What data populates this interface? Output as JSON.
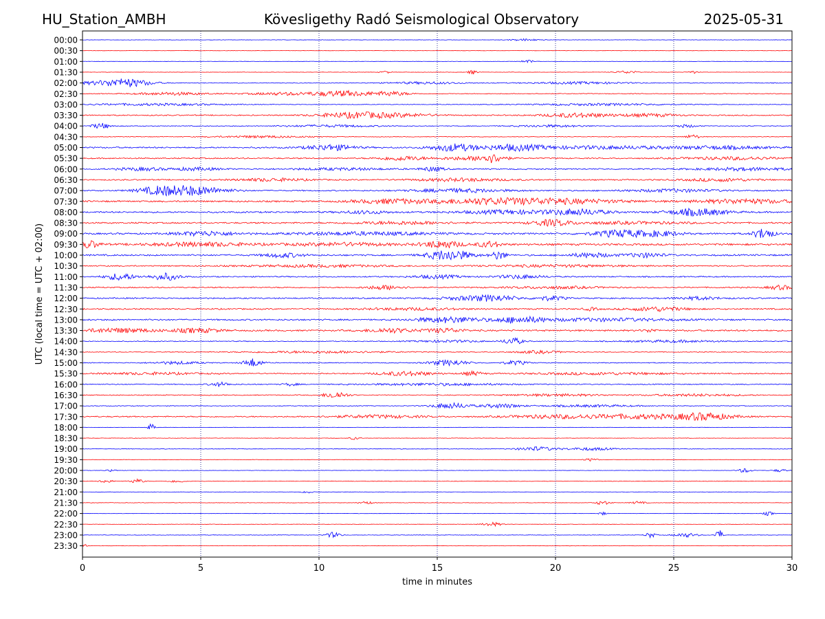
{
  "header": {
    "station": "HU_Station_AMBH",
    "observatory": "Kövesligethy Radó Seismological Observatory",
    "date": "2025-05-31"
  },
  "chart_data": {
    "type": "line",
    "title": "Kövesligethy Radó Seismological Observatory",
    "xlabel": "time in minutes",
    "ylabel": "UTC (local time = UTC + 02:00)",
    "xlim": [
      0,
      30
    ],
    "x_ticks": [
      0,
      5,
      10,
      15,
      20,
      25,
      30
    ],
    "grid": "vertical dotted at 5-minute ticks",
    "colors": {
      "even_row": "#0000ff",
      "odd_row": "#ff0000",
      "grid": "#000080"
    },
    "rows": [
      {
        "label": "00:00",
        "level": 0.3,
        "bursts": [
          [
            18.7,
            0.6,
            1.5
          ]
        ]
      },
      {
        "label": "00:30",
        "level": 0.25,
        "bursts": []
      },
      {
        "label": "01:00",
        "level": 0.25,
        "bursts": [
          [
            18.8,
            0.3,
            2
          ]
        ]
      },
      {
        "label": "01:30",
        "level": 0.3,
        "bursts": [
          [
            12.8,
            0.2,
            2
          ],
          [
            16.5,
            0.2,
            3
          ],
          [
            23,
            0.5,
            2
          ],
          [
            25.8,
            0.2,
            2
          ]
        ]
      },
      {
        "label": "02:00",
        "level": 0.6,
        "bursts": [
          [
            1.9,
            1.0,
            5
          ],
          [
            0.8,
            1.5,
            2
          ],
          [
            14.5,
            1.5,
            1.5
          ],
          [
            21,
            2,
            1.5
          ]
        ]
      },
      {
        "label": "02:30",
        "level": 0.6,
        "bursts": [
          [
            3.8,
            1.5,
            2
          ],
          [
            11,
            1.2,
            4
          ],
          [
            13,
            0.8,
            3
          ],
          [
            8.5,
            1.5,
            2
          ]
        ]
      },
      {
        "label": "03:00",
        "level": 0.5,
        "bursts": [
          [
            3,
            3,
            1.5
          ],
          [
            22,
            3,
            1.5
          ]
        ]
      },
      {
        "label": "03:30",
        "level": 0.9,
        "bursts": [
          [
            11.5,
            1.5,
            4
          ],
          [
            13.5,
            1.5,
            2
          ],
          [
            21,
            1.5,
            3
          ],
          [
            24,
            1.2,
            2
          ]
        ]
      },
      {
        "label": "04:00",
        "level": 0.6,
        "bursts": [
          [
            0.8,
            0.4,
            4
          ],
          [
            10.5,
            2,
            1.5
          ],
          [
            19.8,
            1.5,
            1.5
          ],
          [
            25.5,
            0.5,
            2
          ]
        ]
      },
      {
        "label": "04:30",
        "level": 0.5,
        "bursts": [
          [
            7.5,
            2,
            1.5
          ],
          [
            25.8,
            0.3,
            3
          ]
        ]
      },
      {
        "label": "05:00",
        "level": 1.2,
        "bursts": [
          [
            10.5,
            1,
            4
          ],
          [
            15.7,
            1,
            5
          ],
          [
            18.3,
            1.2,
            4
          ],
          [
            22,
            3,
            2
          ],
          [
            27,
            2,
            2
          ]
        ]
      },
      {
        "label": "05:30",
        "level": 1.0,
        "bursts": [
          [
            13.5,
            1,
            3
          ],
          [
            17.3,
            0.6,
            6
          ],
          [
            16,
            1,
            2
          ],
          [
            27.5,
            2,
            2
          ]
        ]
      },
      {
        "label": "06:00",
        "level": 1.0,
        "bursts": [
          [
            2.5,
            1,
            2
          ],
          [
            4.8,
            1,
            2
          ],
          [
            11,
            2,
            1.5
          ],
          [
            14.8,
            0.5,
            3
          ],
          [
            28,
            2,
            2
          ]
        ]
      },
      {
        "label": "06:30",
        "level": 1.0,
        "bursts": [
          [
            8,
            1.5,
            2
          ],
          [
            16,
            2,
            2
          ],
          [
            27,
            1.5,
            2
          ]
        ]
      },
      {
        "label": "07:00",
        "level": 1.0,
        "bursts": [
          [
            3.8,
            1.2,
            9
          ],
          [
            5.5,
            1,
            3
          ],
          [
            16,
            2,
            2.5
          ],
          [
            25,
            2,
            2
          ]
        ]
      },
      {
        "label": "07:30",
        "level": 1.3,
        "bursts": [
          [
            13,
            1.5,
            3
          ],
          [
            19.5,
            3,
            4
          ],
          [
            28,
            2,
            3
          ],
          [
            16.5,
            2,
            2.5
          ]
        ]
      },
      {
        "label": "08:00",
        "level": 1.3,
        "bursts": [
          [
            21,
            1.2,
            4
          ],
          [
            26,
            1.2,
            5
          ],
          [
            12,
            1,
            2
          ],
          [
            18,
            2,
            2.5
          ]
        ]
      },
      {
        "label": "08:30",
        "level": 1.2,
        "bursts": [
          [
            19.8,
            0.8,
            4
          ],
          [
            13.5,
            2,
            2
          ],
          [
            23,
            3,
            1.5
          ]
        ]
      },
      {
        "label": "09:00",
        "level": 1.4,
        "bursts": [
          [
            5.2,
            1.2,
            3
          ],
          [
            22.8,
            1.2,
            5
          ],
          [
            24.5,
            0.8,
            3
          ],
          [
            28.8,
            0.4,
            8
          ],
          [
            12,
            3,
            2
          ]
        ]
      },
      {
        "label": "09:30",
        "level": 1.6,
        "bursts": [
          [
            0.3,
            0.4,
            5
          ],
          [
            15.2,
            0.8,
            5
          ],
          [
            17.2,
            0.5,
            4
          ],
          [
            5,
            2,
            2.5
          ],
          [
            11,
            2,
            2
          ]
        ]
      },
      {
        "label": "10:00",
        "level": 1.3,
        "bursts": [
          [
            8.5,
            0.8,
            3
          ],
          [
            15.5,
            0.9,
            8
          ],
          [
            17.6,
            0.3,
            6
          ],
          [
            21.5,
            0.9,
            3
          ],
          [
            23.8,
            0.8,
            3
          ]
        ]
      },
      {
        "label": "10:30",
        "level": 1.0,
        "bursts": [
          [
            10,
            3,
            1.5
          ],
          [
            20,
            3,
            1.5
          ]
        ]
      },
      {
        "label": "11:00",
        "level": 1.0,
        "bursts": [
          [
            1.6,
            0.6,
            5
          ],
          [
            3.5,
            0.6,
            5
          ],
          [
            15,
            1,
            2.5
          ],
          [
            18.5,
            1,
            2.5
          ]
        ]
      },
      {
        "label": "11:30",
        "level": 1.0,
        "bursts": [
          [
            12.8,
            0.8,
            3
          ],
          [
            29.5,
            0.5,
            3
          ],
          [
            20,
            2,
            1.5
          ]
        ]
      },
      {
        "label": "12:00",
        "level": 1.1,
        "bursts": [
          [
            17.4,
            1,
            4
          ],
          [
            19.8,
            0.6,
            3
          ],
          [
            26,
            1,
            2
          ],
          [
            16,
            1,
            2
          ]
        ]
      },
      {
        "label": "12:30",
        "level": 1.1,
        "bursts": [
          [
            14,
            2,
            1.5
          ],
          [
            24.3,
            1.2,
            3
          ],
          [
            21.5,
            0.3,
            2
          ]
        ]
      },
      {
        "label": "13:00",
        "level": 1.2,
        "bursts": [
          [
            15.5,
            1.4,
            4
          ],
          [
            18.5,
            1,
            4
          ],
          [
            22,
            3,
            2
          ]
        ]
      },
      {
        "label": "13:30",
        "level": 1.3,
        "bursts": [
          [
            1.5,
            1.5,
            3
          ],
          [
            4.8,
            1,
            3
          ],
          [
            13,
            1,
            3
          ],
          [
            15.3,
            0.8,
            3
          ],
          [
            24,
            0.3,
            2
          ]
        ]
      },
      {
        "label": "14:00",
        "level": 0.7,
        "bursts": [
          [
            18.2,
            0.4,
            5
          ],
          [
            15.5,
            1.5,
            1.5
          ],
          [
            25,
            2,
            1.5
          ]
        ]
      },
      {
        "label": "14:30",
        "level": 0.6,
        "bursts": [
          [
            19.3,
            1,
            2
          ],
          [
            10,
            3,
            1.5
          ]
        ]
      },
      {
        "label": "15:00",
        "level": 0.7,
        "bursts": [
          [
            7.2,
            0.4,
            6
          ],
          [
            15.5,
            0.8,
            4
          ],
          [
            18.3,
            0.5,
            3
          ],
          [
            4,
            1,
            2
          ]
        ]
      },
      {
        "label": "15:30",
        "level": 0.9,
        "bursts": [
          [
            13.7,
            1.2,
            3
          ],
          [
            16.5,
            0.4,
            3
          ],
          [
            3,
            2,
            1.5
          ],
          [
            22,
            3,
            1.5
          ]
        ]
      },
      {
        "label": "16:00",
        "level": 0.8,
        "bursts": [
          [
            5.8,
            0.4,
            3
          ],
          [
            8.8,
            0.3,
            2
          ],
          [
            15,
            3,
            1.5
          ]
        ]
      },
      {
        "label": "16:30",
        "level": 0.7,
        "bursts": [
          [
            10.7,
            0.5,
            5
          ],
          [
            20,
            2,
            1.5
          ],
          [
            26,
            2,
            1.5
          ]
        ]
      },
      {
        "label": "17:00",
        "level": 0.6,
        "bursts": [
          [
            15.6,
            0.8,
            4
          ],
          [
            17.7,
            0.8,
            3
          ],
          [
            21.5,
            2,
            1.5
          ]
        ]
      },
      {
        "label": "17:30",
        "level": 1.0,
        "bursts": [
          [
            26.3,
            1.2,
            5
          ],
          [
            23.5,
            2,
            3
          ],
          [
            20,
            2,
            2.5
          ],
          [
            12.5,
            2,
            2
          ]
        ]
      },
      {
        "label": "18:00",
        "level": 0.3,
        "bursts": [
          [
            2.9,
            0.15,
            5
          ]
        ]
      },
      {
        "label": "18:30",
        "level": 0.35,
        "bursts": [
          [
            11.5,
            0.2,
            2
          ]
        ]
      },
      {
        "label": "19:00",
        "level": 0.5,
        "bursts": [
          [
            19.2,
            0.8,
            3
          ],
          [
            21.5,
            1,
            2
          ]
        ]
      },
      {
        "label": "19:30",
        "level": 0.3,
        "bursts": [
          [
            21.5,
            0.3,
            2
          ]
        ]
      },
      {
        "label": "20:00",
        "level": 0.3,
        "bursts": [
          [
            1.2,
            0.2,
            2
          ],
          [
            28,
            0.3,
            3
          ],
          [
            29.5,
            0.3,
            2
          ]
        ]
      },
      {
        "label": "20:30",
        "level": 0.4,
        "bursts": [
          [
            2.3,
            0.3,
            3
          ],
          [
            4,
            0.3,
            2
          ],
          [
            1,
            0.3,
            2
          ]
        ]
      },
      {
        "label": "21:00",
        "level": 0.25,
        "bursts": [
          [
            9.5,
            0.2,
            2
          ]
        ]
      },
      {
        "label": "21:30",
        "level": 0.35,
        "bursts": [
          [
            12,
            0.3,
            2
          ],
          [
            22,
            0.3,
            3
          ],
          [
            23.5,
            0.3,
            2
          ]
        ]
      },
      {
        "label": "22:00",
        "level": 0.25,
        "bursts": [
          [
            22,
            0.2,
            2
          ],
          [
            29,
            0.2,
            3
          ]
        ]
      },
      {
        "label": "22:30",
        "level": 0.3,
        "bursts": [
          [
            17.3,
            0.4,
            3
          ]
        ]
      },
      {
        "label": "23:00",
        "level": 0.4,
        "bursts": [
          [
            10.6,
            0.3,
            4
          ],
          [
            24,
            0.2,
            4
          ],
          [
            25.5,
            0.5,
            3
          ],
          [
            26.9,
            0.12,
            14
          ]
        ]
      },
      {
        "label": "23:30",
        "level": 0.3,
        "bursts": [
          [
            0.1,
            0.1,
            3
          ]
        ]
      }
    ]
  }
}
